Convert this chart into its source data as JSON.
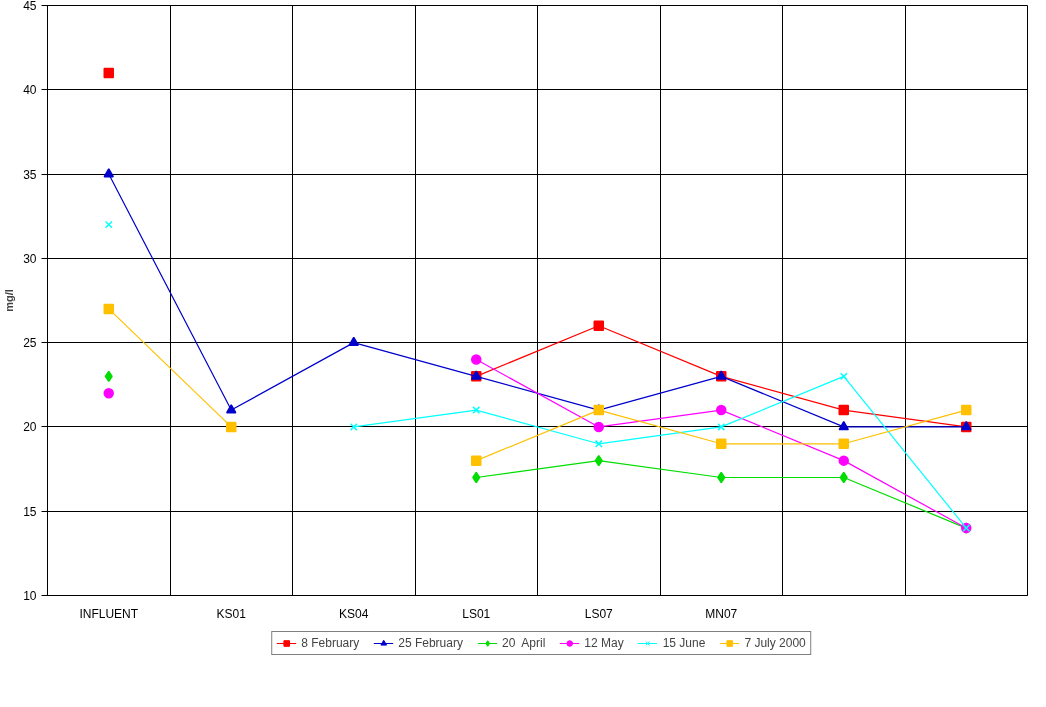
{
  "chart_data": {
    "type": "line",
    "ylabel": "mg/l",
    "categories": [
      "INFLUENT",
      "KS01",
      "KS04",
      "LS01",
      "LS07",
      "MN07",
      null,
      null
    ],
    "ylim": [
      10,
      45
    ],
    "yticks": [
      10,
      15,
      20,
      25,
      30,
      35,
      40,
      45
    ],
    "grid": true,
    "legend": "bottom",
    "line_style": "solid",
    "series": [
      {
        "name": "8 February",
        "color": "#ff0000",
        "marker": "square",
        "values": [
          41,
          null,
          null,
          23,
          26,
          23,
          21,
          20
        ]
      },
      {
        "name": "25 February",
        "color": "#0000cc",
        "marker": "triangle",
        "values": [
          35,
          21,
          25,
          23,
          21,
          23,
          20,
          20
        ]
      },
      {
        "name": "20  April",
        "color": "#00dd00",
        "marker": "diamond",
        "values": [
          23,
          null,
          null,
          17,
          18,
          17,
          17,
          14
        ]
      },
      {
        "name": "12 May",
        "color": "#ff00ff",
        "marker": "circle",
        "values": [
          22,
          null,
          null,
          24,
          20,
          21,
          18,
          14
        ]
      },
      {
        "name": "15 June",
        "color": "#00ffff",
        "marker": "cross",
        "values": [
          32,
          null,
          20,
          21,
          19,
          20,
          23,
          14
        ]
      },
      {
        "name": "7 July 2000",
        "color": "#ffc000",
        "marker": "square",
        "values": [
          27,
          20,
          null,
          18,
          21,
          19,
          19,
          21
        ]
      }
    ]
  }
}
